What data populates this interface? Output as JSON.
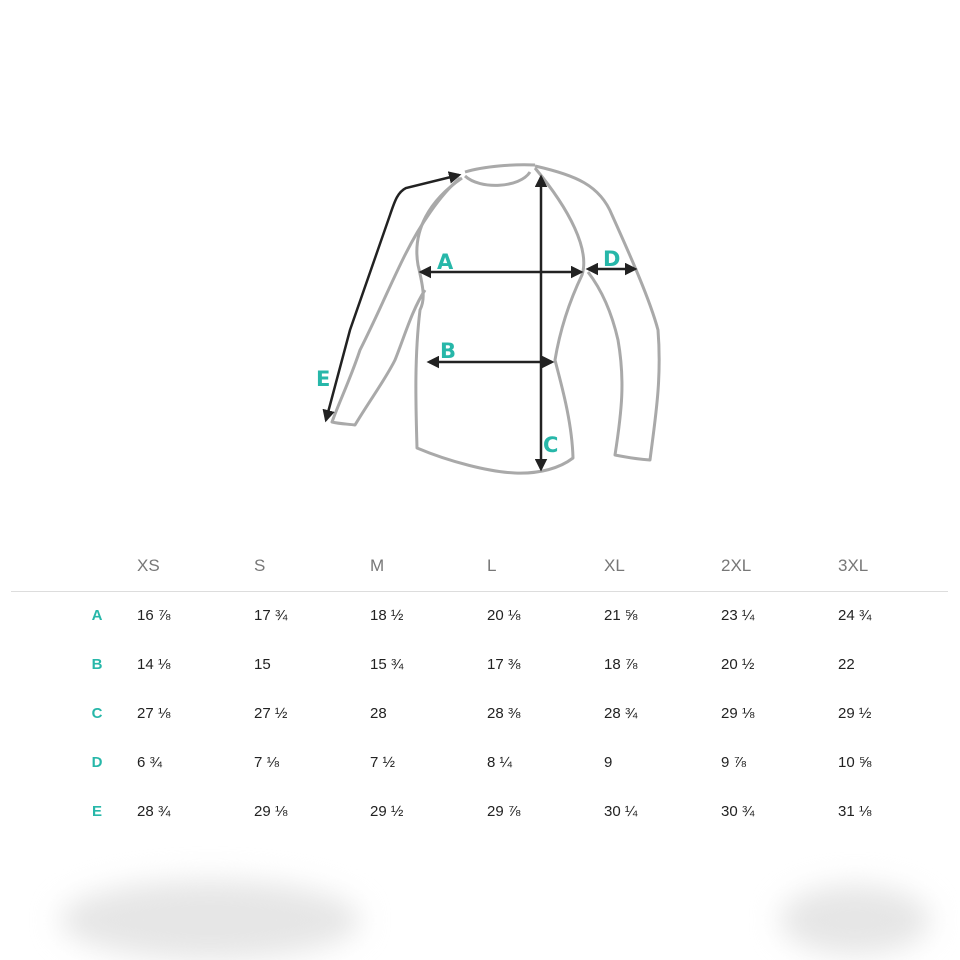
{
  "accent_color": "#27b7a9",
  "diagram": {
    "labels": [
      "A",
      "B",
      "C",
      "D",
      "E"
    ]
  },
  "table": {
    "sizes": [
      "XS",
      "S",
      "M",
      "L",
      "XL",
      "2XL",
      "3XL"
    ],
    "rows": [
      {
        "label": "A",
        "values": [
          "16 ⅞",
          "17 ¾",
          "18 ½",
          "20 ⅛",
          "21 ⅝",
          "23 ¼",
          "24 ¾"
        ]
      },
      {
        "label": "B",
        "values": [
          "14 ⅛",
          "15",
          "15 ¾",
          "17 ⅜",
          "18 ⅞",
          "20 ½",
          "22"
        ]
      },
      {
        "label": "C",
        "values": [
          "27 ⅛",
          "27 ½",
          "28",
          "28 ⅜",
          "28 ¾",
          "29 ⅛",
          "29 ½"
        ]
      },
      {
        "label": "D",
        "values": [
          "6 ¾",
          "7 ⅛",
          "7 ½",
          "8 ¼",
          "9",
          "9 ⅞",
          "10 ⅝"
        ]
      },
      {
        "label": "E",
        "values": [
          "28 ¾",
          "29 ⅛",
          "29 ½",
          "29 ⅞",
          "30 ¼",
          "30 ¾",
          "31 ⅛"
        ]
      }
    ]
  }
}
